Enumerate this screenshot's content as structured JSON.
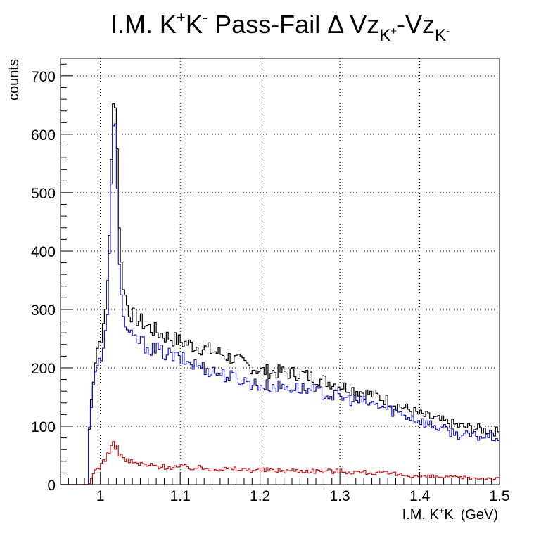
{
  "chart_data": {
    "type": "line",
    "title": "I.M. K+K- Pass-Fail Δ Vz_{K+}-Vz_{K-}",
    "title_parts": {
      "main": "I.M. K",
      "sup1": "+",
      "k2": "K",
      "sup2": "-",
      "rest": " Pass-Fail Δ Vz",
      "sub1": "K",
      "sub1_sup": "+",
      "dash": "-Vz",
      "sub2": "K",
      "sub2_sup": "-"
    },
    "xlabel": "I.M. K+K- (GeV)",
    "xlabel_parts": {
      "a": "I.M. K",
      "sup1": "+",
      "b": "K",
      "sup2": "-",
      "c": " (GeV)"
    },
    "ylabel": "counts",
    "xlim": [
      0.95,
      1.5
    ],
    "ylim": [
      0,
      730
    ],
    "x_ticks": [
      1,
      1.1,
      1.2,
      1.3,
      1.4,
      1.5
    ],
    "x_tick_labels": [
      "1",
      "1.1",
      "1.2",
      "1.3",
      "1.4",
      "1.5"
    ],
    "y_ticks": [
      0,
      100,
      200,
      300,
      400,
      500,
      600,
      700
    ],
    "y_tick_labels": [
      "0",
      "100",
      "200",
      "300",
      "400",
      "500",
      "600",
      "700"
    ],
    "grid": true,
    "histogram": true,
    "colors": {
      "total": "#000000",
      "pass": "#1414c8",
      "fail": "#c81414"
    },
    "x_anchors": [
      0.95,
      0.984,
      0.986,
      0.99,
      0.995,
      1.0,
      1.005,
      1.01,
      1.015,
      1.0175,
      1.02,
      1.0225,
      1.025,
      1.03,
      1.035,
      1.04,
      1.05,
      1.06,
      1.08,
      1.1,
      1.15,
      1.2,
      1.25,
      1.3,
      1.35,
      1.4,
      1.45,
      1.5
    ],
    "series": [
      {
        "key": "total",
        "values": [
          0,
          0,
          90,
          170,
          230,
          250,
          270,
          380,
          600,
          690,
          640,
          510,
          390,
          330,
          300,
          290,
          280,
          270,
          255,
          245,
          225,
          195,
          190,
          170,
          150,
          120,
          100,
          90
        ]
      },
      {
        "key": "pass",
        "values": [
          0,
          0,
          90,
          165,
          205,
          210,
          230,
          330,
          560,
          640,
          590,
          450,
          330,
          280,
          255,
          250,
          245,
          235,
          225,
          215,
          190,
          170,
          165,
          150,
          135,
          110,
          85,
          80
        ]
      },
      {
        "key": "fail",
        "values": [
          0,
          0,
          0,
          15,
          28,
          32,
          42,
          55,
          65,
          68,
          66,
          60,
          50,
          44,
          40,
          38,
          35,
          33,
          31,
          30,
          27,
          25,
          24,
          23,
          20,
          14,
          12,
          10
        ]
      }
    ]
  }
}
